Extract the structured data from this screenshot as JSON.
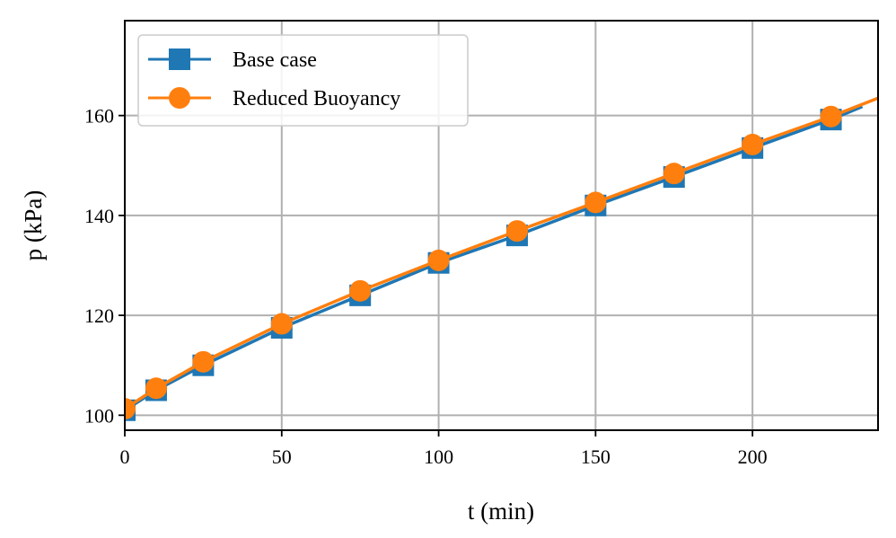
{
  "chart_data": {
    "type": "line",
    "xlabel": "t (min)",
    "ylabel": "p (kPa)",
    "xlim": [
      0,
      240
    ],
    "ylim": [
      97,
      179
    ],
    "xticks": [
      0,
      50,
      100,
      150,
      200
    ],
    "yticks": [
      100,
      120,
      140,
      160
    ],
    "grid": true,
    "legend_position": "top-left",
    "series": [
      {
        "name": "Base case",
        "color": "#1f77b4",
        "marker": "square",
        "x": [
          0,
          10,
          25,
          50,
          75,
          100,
          125,
          150,
          175,
          200,
          225
        ],
        "y": [
          101,
          105,
          110,
          117.5,
          124,
          130.5,
          136,
          142,
          147.7,
          153.5,
          159.2
        ],
        "line_x": [
          0,
          10,
          25,
          50,
          75,
          100,
          125,
          150,
          175,
          200,
          225,
          235
        ],
        "line_y": [
          101,
          105,
          110,
          117.5,
          124,
          130.5,
          136,
          142,
          147.7,
          153.5,
          159.2,
          161.8
        ]
      },
      {
        "name": "Reduced Buoyancy",
        "color": "#ff7f0e",
        "marker": "circle",
        "x": [
          0,
          10,
          25,
          50,
          75,
          100,
          125,
          150,
          175,
          200,
          225
        ],
        "y": [
          101.3,
          105.4,
          110.7,
          118.3,
          124.9,
          131,
          136.9,
          142.6,
          148.4,
          154.2,
          159.8
        ],
        "line_x": [
          0,
          10,
          25,
          50,
          75,
          100,
          125,
          150,
          175,
          200,
          225,
          240
        ],
        "line_y": [
          101.3,
          105.4,
          110.7,
          118.3,
          124.9,
          131,
          136.9,
          142.6,
          148.4,
          154.2,
          159.8,
          163.5
        ]
      }
    ]
  }
}
